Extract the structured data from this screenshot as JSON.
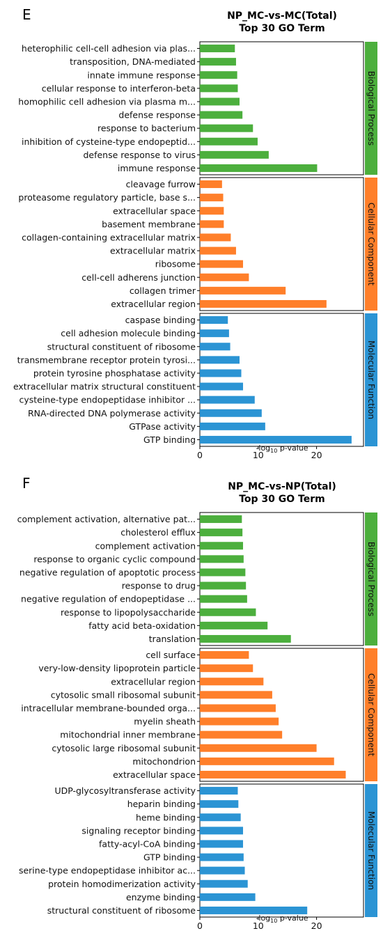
{
  "colors": {
    "Biological Process": "#4caf3d",
    "Cellular Component": "#ff7f2a",
    "Molecular Function": "#2b94d4"
  },
  "chart_data": [
    {
      "type": "bar",
      "orientation": "horizontal",
      "panel": "E",
      "title": "NP_MC-vs-MC(Total)",
      "subtitle": "Top 30 GO Term",
      "xlabel_base": "-log",
      "xlabel_sub": "10",
      "xlabel_rest": " p-value",
      "xlim": [
        0,
        28
      ],
      "xticks": [
        0,
        10,
        20
      ],
      "groups": [
        {
          "name": "Biological Process",
          "terms": [
            "heterophilic cell-cell adhesion via plas...",
            "transposition, DNA-mediated",
            "innate immune response",
            "cellular response to interferon-beta",
            "homophilic cell adhesion via plasma m...",
            "defense response",
            "response to bacterium",
            "inhibition of cysteine-type endopeptid...",
            "defense response to virus",
            "immune response"
          ],
          "values": [
            6.0,
            6.2,
            6.4,
            6.5,
            6.8,
            7.3,
            9.1,
            9.9,
            11.8,
            20.1
          ]
        },
        {
          "name": "Cellular Component",
          "terms": [
            "cleavage furrow",
            "proteasome regulatory particle, base s...",
            "extracellular space",
            "basement membrane",
            "collagen-containing extracellular matrix",
            "extracellular matrix",
            "ribosome",
            "cell-cell adherens junction",
            "collagen trimer",
            "extracellular region"
          ],
          "values": [
            3.8,
            4.0,
            4.1,
            4.1,
            5.3,
            6.2,
            7.4,
            8.4,
            14.7,
            21.7
          ]
        },
        {
          "name": "Molecular Function",
          "terms": [
            "caspase binding",
            "cell adhesion molecule binding",
            "structural constituent of ribosome",
            "transmembrane receptor protein tyrosi...",
            "protein tyrosine phosphatase activity",
            "extracellular matrix structural constituent",
            "cysteine-type endopeptidase inhibitor ...",
            "RNA-directed DNA polymerase activity",
            "GTPase activity",
            "GTP binding"
          ],
          "values": [
            4.8,
            5.0,
            5.2,
            6.8,
            7.1,
            7.4,
            9.4,
            10.6,
            11.2,
            26.0
          ]
        }
      ]
    },
    {
      "type": "bar",
      "orientation": "horizontal",
      "panel": "F",
      "title": "NP_MC-vs-NP(Total)",
      "subtitle": "Top 30 GO Term",
      "xlabel_base": "-log",
      "xlabel_sub": "10",
      "xlabel_rest": " p-value",
      "xlim": [
        0,
        27.5
      ],
      "xticks": [
        0,
        10,
        20
      ],
      "groups": [
        {
          "name": "Biological Process",
          "terms": [
            "complement activation, alternative pat...",
            "cholesterol efflux",
            "complement activation",
            "response to organic cyclic compound",
            "negative regulation of apoptotic process",
            "response to drug",
            "negative regulation of endopeptidase ...",
            "response to lipopolysaccharide",
            "fatty acid beta-oxidation",
            "translation"
          ],
          "values": [
            7.2,
            7.3,
            7.4,
            7.5,
            7.8,
            7.9,
            8.1,
            9.6,
            11.6,
            15.6
          ]
        },
        {
          "name": "Cellular Component",
          "terms": [
            "cell surface",
            "very-low-density lipoprotein particle",
            "extracellular region",
            "cytosolic small ribosomal subunit",
            "intracellular membrane-bounded orga...",
            "myelin sheath",
            "mitochondrial inner membrane",
            "cytosolic large ribosomal subunit",
            "mitochondrion",
            "extracellular space"
          ],
          "values": [
            8.4,
            9.1,
            10.9,
            12.4,
            13.0,
            13.5,
            14.1,
            20.0,
            23.0,
            25.0
          ]
        },
        {
          "name": "Molecular Function",
          "terms": [
            "UDP-glycosyltransferase activity",
            "heparin binding",
            "heme binding",
            "signaling receptor binding",
            "fatty-acyl-CoA binding",
            "GTP binding",
            "serine-type endopeptidase inhibitor ac...",
            "protein homodimerization activity",
            "enzyme binding",
            "structural constituent of ribosome"
          ],
          "values": [
            6.5,
            6.6,
            7.0,
            7.4,
            7.4,
            7.5,
            7.7,
            8.2,
            9.5,
            18.4
          ]
        }
      ]
    }
  ]
}
